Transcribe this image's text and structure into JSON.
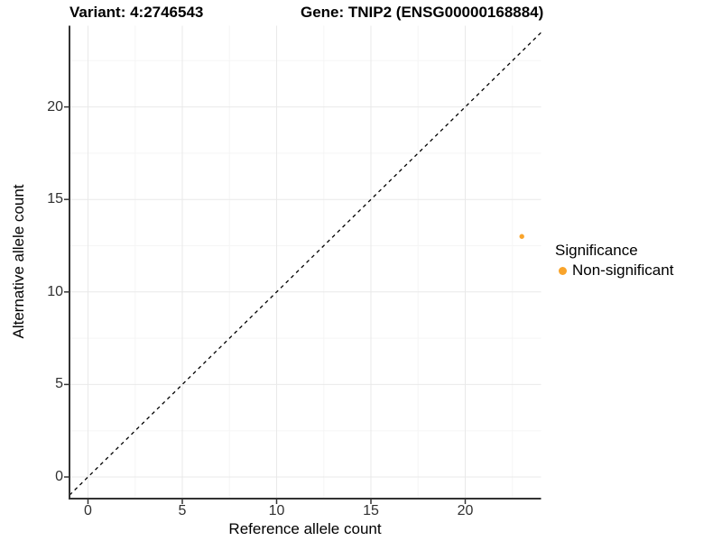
{
  "chart_data": {
    "type": "scatter",
    "title_left": "Variant: 4:2746543",
    "title_right": "Gene: TNIP2 (ENSG00000168884)",
    "xlabel": "Reference allele count",
    "ylabel": "Alternative allele count",
    "xticks": [
      0,
      5,
      10,
      15,
      20
    ],
    "yticks": [
      0,
      5,
      10,
      15,
      20
    ],
    "xlim": [
      -1.0,
      24.0
    ],
    "ylim": [
      -1.1,
      24.4
    ],
    "grid": "major+minor",
    "identity_line": {
      "style": "dashed",
      "slope": 1,
      "intercept": 0,
      "color": "#000000"
    },
    "series": [
      {
        "name": "Non-significant",
        "color": "#F9A42B",
        "points": [
          {
            "x": 23,
            "y": 13
          }
        ]
      }
    ],
    "legend": {
      "title": "Significance",
      "position": "right",
      "items": [
        {
          "label": "Non-significant",
          "color": "#F9A42B"
        }
      ]
    }
  },
  "colors": {
    "background": "#FFFFFF",
    "axis_line": "#333333",
    "grid_major": "#E9E9E9",
    "grid_minor": "#F5F5F5",
    "tick_text": "#303030",
    "point": "#F9A42B"
  }
}
